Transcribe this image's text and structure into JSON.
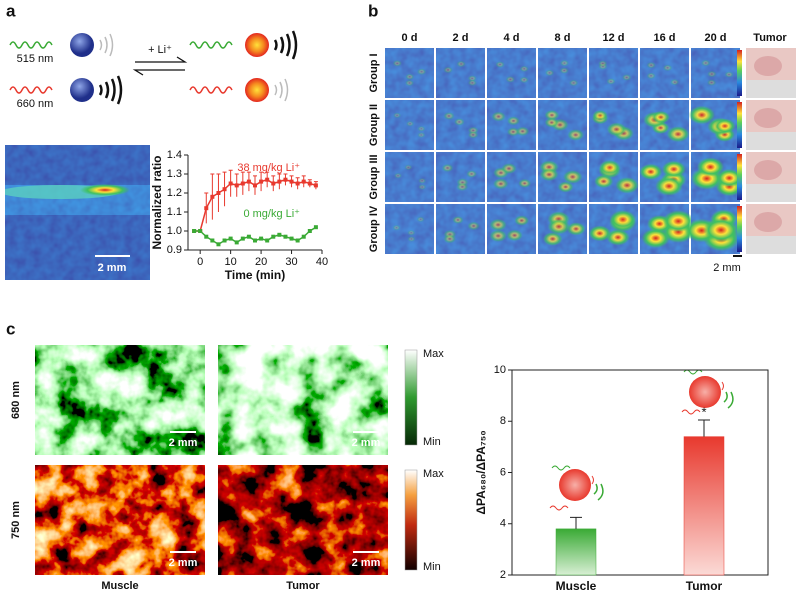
{
  "panel_a": {
    "label": "a",
    "wave_top": "515 nm",
    "wave_bottom": "660 nm",
    "reagent": "+ Li⁺",
    "scale": "2 mm"
  },
  "panel_b": {
    "label": "b",
    "columns": [
      "0 d",
      "2 d",
      "4 d",
      "8 d",
      "12 d",
      "16 d",
      "20 d",
      "Tumor"
    ],
    "rows": [
      "Group I",
      "Group II",
      "Group III",
      "Group IV"
    ],
    "scale": "2 mm"
  },
  "panel_c": {
    "label": "c",
    "rows": [
      "680 nm",
      "750 nm"
    ],
    "columns": [
      "Muscle",
      "Tumor"
    ],
    "scale": "2 mm",
    "colorbar_max": "Max",
    "colorbar_min": "Min"
  },
  "chart_data": [
    {
      "type": "line",
      "ylabel": "Normalized ratio",
      "xlabel": "Time (min)",
      "x": [
        -2,
        0,
        2,
        4,
        6,
        8,
        10,
        12,
        14,
        16,
        18,
        20,
        22,
        24,
        26,
        28,
        30,
        32,
        34,
        36,
        38
      ],
      "series": [
        {
          "name": "38 mg/kg Li⁺",
          "color": "#e8392e",
          "values": [
            1.0,
            1.0,
            1.12,
            1.18,
            1.2,
            1.22,
            1.25,
            1.24,
            1.25,
            1.26,
            1.24,
            1.26,
            1.27,
            1.25,
            1.26,
            1.27,
            1.26,
            1.25,
            1.26,
            1.25,
            1.24
          ],
          "errors": [
            0,
            0,
            0.08,
            0.12,
            0.1,
            0.09,
            0.07,
            0.06,
            0.06,
            0.05,
            0.05,
            0.05,
            0.04,
            0.04,
            0.04,
            0.03,
            0.03,
            0.03,
            0.03,
            0.02,
            0.02
          ]
        },
        {
          "name": "0 mg/kg Li⁺",
          "color": "#3aaa35",
          "values": [
            1.0,
            1.0,
            0.97,
            0.95,
            0.93,
            0.95,
            0.96,
            0.94,
            0.96,
            0.97,
            0.95,
            0.96,
            0.95,
            0.97,
            0.98,
            0.97,
            0.96,
            0.95,
            0.97,
            1.0,
            1.02
          ]
        }
      ],
      "xlim": [
        -4,
        40
      ],
      "ylim": [
        0.9,
        1.4
      ],
      "xticks": [
        0,
        10,
        20,
        30,
        40
      ],
      "yticks": [
        0.9,
        {
          "value": 1,
          "label": "1.0"
        },
        1.1,
        1.2,
        1.3,
        1.4
      ]
    },
    {
      "type": "bar",
      "ylabel": "ΔPA₆₈₀/ΔPA₇₅₀",
      "categories": [
        "Muscle",
        "Tumor"
      ],
      "values": [
        3.8,
        7.4
      ],
      "errors": [
        0.45,
        0.65
      ],
      "colors": [
        "#3aaa35",
        "#e8392e"
      ],
      "ylim": [
        2,
        10
      ],
      "yticks": [
        2,
        4,
        6,
        8,
        10
      ],
      "significance": "*"
    }
  ]
}
